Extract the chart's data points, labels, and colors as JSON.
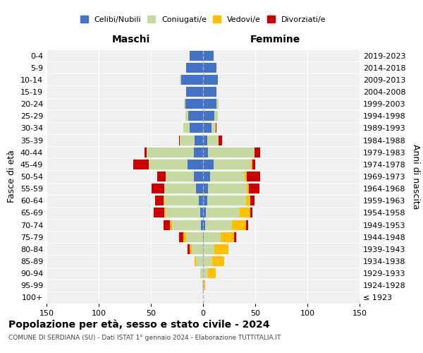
{
  "age_groups": [
    "100+",
    "95-99",
    "90-94",
    "85-89",
    "80-84",
    "75-79",
    "70-74",
    "65-69",
    "60-64",
    "55-59",
    "50-54",
    "45-49",
    "40-44",
    "35-39",
    "30-34",
    "25-29",
    "20-24",
    "15-19",
    "10-14",
    "5-9",
    "0-4"
  ],
  "birth_years": [
    "≤ 1923",
    "1924-1928",
    "1929-1933",
    "1934-1938",
    "1939-1943",
    "1944-1948",
    "1949-1953",
    "1954-1958",
    "1959-1963",
    "1964-1968",
    "1969-1973",
    "1974-1978",
    "1979-1983",
    "1984-1988",
    "1989-1993",
    "1994-1998",
    "1999-2003",
    "2004-2008",
    "2009-2013",
    "2014-2018",
    "2019-2023"
  ],
  "male": {
    "celibi": [
      0,
      0,
      0,
      0,
      0,
      0,
      2,
      3,
      4,
      7,
      9,
      15,
      9,
      8,
      13,
      14,
      17,
      16,
      21,
      16,
      13
    ],
    "coniugati": [
      0,
      1,
      3,
      7,
      11,
      16,
      28,
      33,
      33,
      30,
      27,
      37,
      45,
      14,
      6,
      3,
      1,
      0,
      1,
      0,
      0
    ],
    "vedovi": [
      0,
      0,
      0,
      1,
      2,
      3,
      2,
      1,
      1,
      0,
      0,
      0,
      0,
      0,
      0,
      0,
      0,
      0,
      0,
      0,
      0
    ],
    "divorziati": [
      0,
      0,
      0,
      0,
      2,
      4,
      6,
      10,
      8,
      12,
      8,
      15,
      2,
      1,
      0,
      0,
      0,
      0,
      0,
      0,
      0
    ]
  },
  "female": {
    "nubili": [
      0,
      0,
      0,
      0,
      0,
      1,
      2,
      3,
      4,
      5,
      7,
      10,
      5,
      4,
      8,
      11,
      13,
      13,
      14,
      13,
      10
    ],
    "coniugate": [
      0,
      1,
      5,
      9,
      11,
      16,
      26,
      32,
      37,
      37,
      33,
      36,
      44,
      11,
      4,
      3,
      2,
      0,
      0,
      0,
      0
    ],
    "vedove": [
      0,
      1,
      7,
      11,
      13,
      13,
      13,
      10,
      4,
      2,
      2,
      1,
      0,
      0,
      0,
      0,
      0,
      0,
      0,
      0,
      0
    ],
    "divorziate": [
      0,
      0,
      0,
      0,
      0,
      2,
      2,
      2,
      4,
      10,
      13,
      3,
      6,
      3,
      1,
      0,
      0,
      0,
      0,
      0,
      0
    ]
  },
  "colors": {
    "celibi": "#4472c4",
    "coniugati": "#c5d9a0",
    "vedovi": "#ffc000",
    "divorziati": "#cc0000"
  },
  "title": "Popolazione per età, sesso e stato civile - 2024",
  "subtitle": "COMUNE DI SERDIANA (SU) - Dati ISTAT 1° gennaio 2024 - Elaborazione TUTTITALIA.IT",
  "xlabel_left": "Maschi",
  "xlabel_right": "Femmine",
  "ylabel_left": "Fasce di età",
  "ylabel_right": "Anni di nascita",
  "xlim": 150,
  "legend_labels": [
    "Celibi/Nubili",
    "Coniugati/e",
    "Vedovi/e",
    "Divorziati/e"
  ],
  "bg_color": "#ffffff",
  "plot_bg": "#f0f0f0"
}
